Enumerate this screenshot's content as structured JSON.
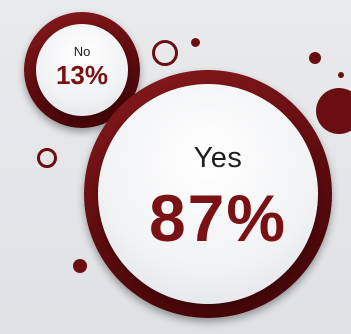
{
  "chart_data": {
    "type": "pie",
    "categories": [
      "Yes",
      "No"
    ],
    "values": [
      87,
      13
    ],
    "value_labels": [
      "87%",
      "13%"
    ],
    "title": "",
    "xlabel": "",
    "ylabel": ""
  },
  "colors": {
    "accent": "#6a0e12",
    "accent_text": "#7a1114",
    "background": "#e4e5e8"
  }
}
